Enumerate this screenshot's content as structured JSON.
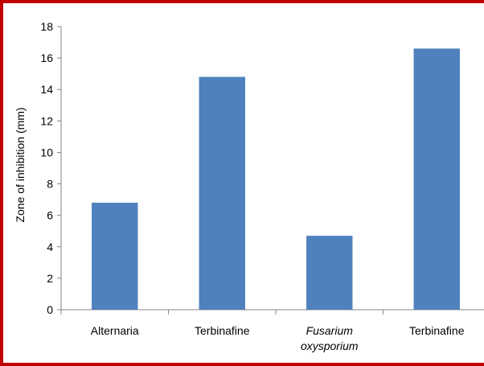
{
  "chart_data": {
    "type": "bar",
    "categories": [
      "Alternaria",
      "Terbinafine",
      "Fusarium oxysporium",
      "Terbinafine"
    ],
    "category_lines": [
      [
        "Alternaria"
      ],
      [
        "Terbinafine"
      ],
      [
        "Fusarium",
        "oxysporium"
      ],
      [
        "Terbinafine"
      ]
    ],
    "italic_categories": [
      false,
      false,
      true,
      false
    ],
    "values": [
      6.8,
      14.8,
      4.7,
      16.6
    ],
    "title": "",
    "xlabel": "",
    "ylabel": "Zone of inhibition (mm)",
    "ylim": [
      0,
      18
    ],
    "yticks": [
      0,
      2,
      4,
      6,
      8,
      10,
      12,
      14,
      16,
      18
    ],
    "grid": false,
    "legend": "none",
    "colors": {
      "bar": "#4f81bd",
      "axis": "#868686",
      "border": "#c00000"
    }
  }
}
